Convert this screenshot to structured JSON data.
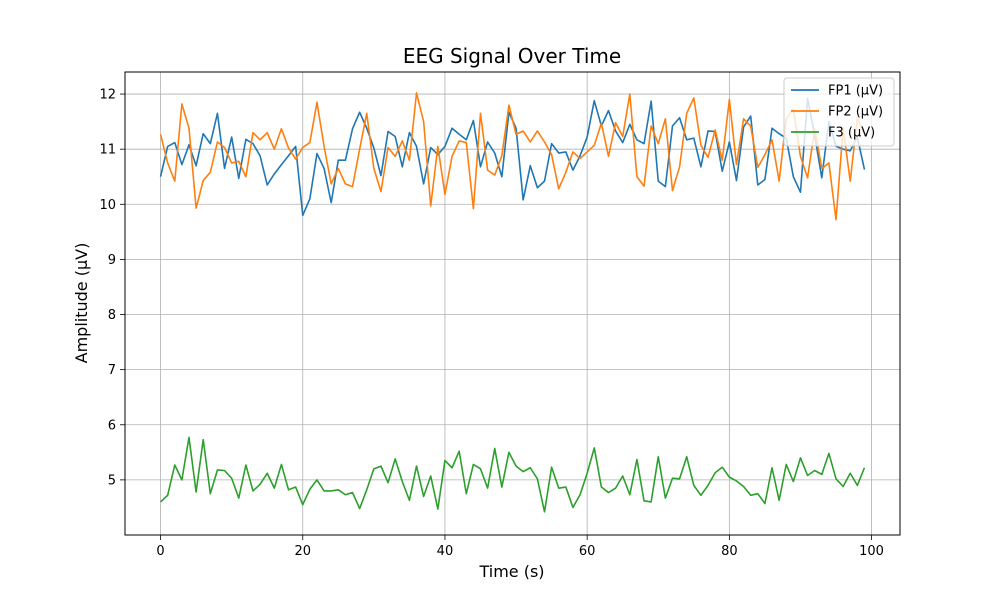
{
  "chart_data": {
    "type": "line",
    "title": "EEG Signal Over Time",
    "xlabel": "Time (s)",
    "ylabel": "Amplitude (μV)",
    "xlim": [
      -5,
      104
    ],
    "ylim": [
      4.0,
      12.4
    ],
    "xticks": [
      0,
      20,
      40,
      60,
      80,
      100
    ],
    "yticks": [
      5,
      6,
      7,
      8,
      9,
      10,
      11,
      12
    ],
    "grid": true,
    "legend_position": "top-right",
    "x": [
      0,
      1,
      2,
      3,
      4,
      5,
      6,
      7,
      8,
      9,
      10,
      11,
      12,
      13,
      14,
      15,
      16,
      17,
      18,
      19,
      20,
      21,
      22,
      23,
      24,
      25,
      26,
      27,
      28,
      29,
      30,
      31,
      32,
      33,
      34,
      35,
      36,
      37,
      38,
      39,
      40,
      41,
      42,
      43,
      44,
      45,
      46,
      47,
      48,
      49,
      50,
      51,
      52,
      53,
      54,
      55,
      56,
      57,
      58,
      59,
      60,
      61,
      62,
      63,
      64,
      65,
      66,
      67,
      68,
      69,
      70,
      71,
      72,
      73,
      74,
      75,
      76,
      77,
      78,
      79,
      80,
      81,
      82,
      83,
      84,
      85,
      86,
      87,
      88,
      89,
      90,
      91,
      92,
      93,
      94,
      95,
      96,
      97,
      98,
      99
    ],
    "series": [
      {
        "name": "FP1 (μV)",
        "color": "#1f77b4",
        "values": [
          10.5,
          11.05,
          11.12,
          10.72,
          11.08,
          10.7,
          11.28,
          11.1,
          11.65,
          10.65,
          11.22,
          10.47,
          11.18,
          11.1,
          10.88,
          10.35,
          10.55,
          10.72,
          10.88,
          11.05,
          9.8,
          10.1,
          10.92,
          10.65,
          10.03,
          10.8,
          10.8,
          11.37,
          11.67,
          11.38,
          11.02,
          10.52,
          11.32,
          11.23,
          10.68,
          11.3,
          11.05,
          10.37,
          11.03,
          10.9,
          11.05,
          11.38,
          11.27,
          11.17,
          11.52,
          10.68,
          11.13,
          10.93,
          10.5,
          11.67,
          11.38,
          10.08,
          10.7,
          10.3,
          10.42,
          11.1,
          10.93,
          10.95,
          10.62,
          10.88,
          11.22,
          11.88,
          11.42,
          11.7,
          11.33,
          11.12,
          11.45,
          11.17,
          11.1,
          11.87,
          10.42,
          10.32,
          11.42,
          11.57,
          11.17,
          11.2,
          10.68,
          11.33,
          11.32,
          10.6,
          11.13,
          10.43,
          11.4,
          11.6,
          10.35,
          10.45,
          11.38,
          11.28,
          11.2,
          10.5,
          10.22,
          11.92,
          11.25,
          10.48,
          11.5,
          11.05,
          11.0,
          10.97,
          11.22,
          10.63
        ]
      },
      {
        "name": "FP2 (μV)",
        "color": "#ff7f0e",
        "values": [
          11.27,
          10.75,
          10.42,
          11.82,
          11.38,
          9.93,
          10.43,
          10.58,
          11.13,
          11.03,
          10.75,
          10.78,
          10.5,
          11.3,
          11.17,
          11.3,
          11.0,
          11.37,
          11.02,
          10.82,
          11.03,
          11.12,
          11.85,
          11.05,
          10.37,
          10.65,
          10.37,
          10.32,
          11.0,
          11.65,
          10.65,
          10.23,
          11.03,
          10.87,
          11.15,
          10.8,
          12.02,
          11.5,
          9.97,
          11.05,
          10.18,
          10.87,
          11.15,
          11.12,
          9.92,
          11.65,
          10.62,
          10.53,
          10.88,
          11.8,
          11.27,
          11.33,
          11.13,
          11.33,
          11.13,
          10.9,
          10.28,
          10.58,
          10.95,
          10.83,
          10.95,
          11.07,
          11.47,
          10.87,
          11.48,
          11.23,
          12.0,
          10.5,
          10.33,
          11.42,
          11.1,
          11.55,
          10.25,
          10.68,
          11.65,
          11.93,
          11.07,
          10.85,
          11.35,
          10.8,
          11.9,
          10.72,
          11.55,
          11.42,
          10.67,
          10.9,
          11.17,
          10.42,
          11.55,
          11.73,
          10.87,
          10.48,
          11.37,
          10.65,
          10.75,
          9.72,
          11.38,
          10.42,
          11.57,
          11.27
        ]
      },
      {
        "name": "F3 (μV)",
        "color": "#2ca02c",
        "values": [
          4.6,
          4.72,
          5.27,
          5.0,
          5.77,
          4.78,
          5.73,
          4.75,
          5.18,
          5.17,
          5.03,
          4.67,
          5.27,
          4.8,
          4.92,
          5.12,
          4.85,
          5.28,
          4.82,
          4.87,
          4.55,
          4.83,
          5.0,
          4.8,
          4.8,
          4.82,
          4.73,
          4.77,
          4.48,
          4.82,
          5.2,
          5.25,
          4.95,
          5.38,
          4.97,
          4.63,
          5.25,
          4.7,
          5.07,
          4.47,
          5.35,
          5.22,
          5.52,
          4.75,
          5.28,
          5.2,
          4.85,
          5.57,
          4.87,
          5.5,
          5.25,
          5.15,
          5.22,
          5.02,
          4.42,
          5.23,
          4.85,
          4.87,
          4.5,
          4.73,
          5.12,
          5.58,
          4.87,
          4.77,
          4.85,
          5.07,
          4.73,
          5.37,
          4.62,
          4.6,
          5.42,
          4.67,
          5.03,
          5.02,
          5.42,
          4.9,
          4.72,
          4.9,
          5.13,
          5.23,
          5.05,
          4.98,
          4.88,
          4.72,
          4.75,
          4.57,
          5.22,
          4.63,
          5.28,
          4.97,
          5.4,
          5.08,
          5.17,
          5.1,
          5.48,
          5.02,
          4.88,
          5.12,
          4.9,
          5.22
        ]
      }
    ]
  }
}
